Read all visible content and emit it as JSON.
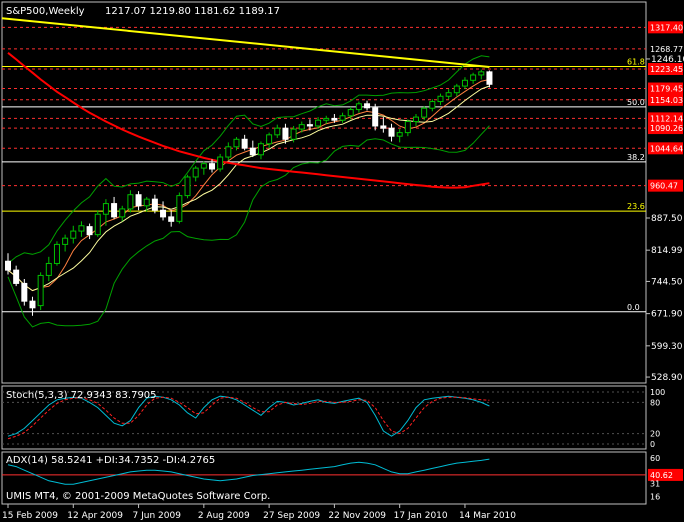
{
  "header": {
    "title": "S&P500,Weekly",
    "ohlc": "1217.07 1219.80 1181.62 1189.17"
  },
  "colors": {
    "background": "#000000",
    "axis": "#c0c0c0",
    "grid": "#2a2a2a",
    "bull": "#00c000",
    "bear": "#ffffff",
    "ma_fast": "#ffff00",
    "ma_slow": "#ff0000",
    "bb": "#00a000",
    "ma_short": "#ff8040",
    "ma_mid": "#ffffa0",
    "stoch_main": "#00bcd4",
    "stoch_signal": "#ff2020",
    "adx": "#00bcd4",
    "hline_red": "#ff3030",
    "hline_yellow": "#ffff00",
    "hline_white": "#ffffff",
    "price_box": "#ff0000"
  },
  "chart_data": {
    "type": "candlestick",
    "title": "S&P500,Weekly",
    "y_axis_labels": [
      "1246.10",
      "887.50",
      "814.99",
      "744.50",
      "671.90",
      "599.30",
      "528.90"
    ],
    "price_range": [
      520,
      1370
    ],
    "horizontal_levels_red": [
      {
        "value": 1317.4,
        "label": "1317.40",
        "boxed": true
      },
      {
        "value": 1268.77,
        "label": "1268.77",
        "boxed": false
      },
      {
        "value": 1223.45,
        "label": "1223.45",
        "boxed": true
      },
      {
        "value": 1179.45,
        "label": "1179.45",
        "boxed": true
      },
      {
        "value": 1154.03,
        "label": "1154.03",
        "boxed": true
      },
      {
        "value": 1112.14,
        "label": "1112.14",
        "boxed": true
      },
      {
        "value": 1090.26,
        "label": "1090.26",
        "boxed": true
      },
      {
        "value": 1044.64,
        "label": "1044.64",
        "boxed": true
      },
      {
        "value": 960.47,
        "label": "960.47",
        "boxed": true
      }
    ],
    "fib_levels": [
      {
        "value": 1229,
        "label": "61.8",
        "color": "yellow"
      },
      {
        "value": 1138,
        "label": "50.0",
        "color": "white"
      },
      {
        "value": 1014,
        "label": "38.2",
        "color": "white"
      },
      {
        "value": 903,
        "label": "23.6",
        "color": "yellow"
      },
      {
        "value": 676,
        "label": "0.0",
        "color": "white"
      }
    ],
    "x_labels": [
      "15 Feb 2009",
      "12 Apr 2009",
      "7 Jun 2009",
      "2 Aug 2009",
      "27 Sep 2009",
      "22 Nov 2009",
      "17 Jan 2010",
      "14 Mar 2010"
    ],
    "x_label_index": [
      0,
      8,
      16,
      24,
      32,
      40,
      48,
      56
    ],
    "candles": [
      {
        "o": 790,
        "h": 808,
        "l": 760,
        "c": 770
      },
      {
        "o": 770,
        "h": 780,
        "l": 734,
        "c": 740
      },
      {
        "o": 740,
        "h": 750,
        "l": 690,
        "c": 700
      },
      {
        "o": 700,
        "h": 710,
        "l": 667,
        "c": 685
      },
      {
        "o": 690,
        "h": 765,
        "l": 680,
        "c": 758
      },
      {
        "o": 758,
        "h": 800,
        "l": 745,
        "c": 785
      },
      {
        "o": 785,
        "h": 835,
        "l": 780,
        "c": 828
      },
      {
        "o": 828,
        "h": 850,
        "l": 812,
        "c": 842
      },
      {
        "o": 842,
        "h": 870,
        "l": 830,
        "c": 858
      },
      {
        "o": 858,
        "h": 880,
        "l": 845,
        "c": 870
      },
      {
        "o": 868,
        "h": 875,
        "l": 840,
        "c": 850
      },
      {
        "o": 850,
        "h": 905,
        "l": 845,
        "c": 896
      },
      {
        "o": 896,
        "h": 930,
        "l": 870,
        "c": 920
      },
      {
        "o": 920,
        "h": 935,
        "l": 885,
        "c": 890
      },
      {
        "o": 890,
        "h": 915,
        "l": 880,
        "c": 908
      },
      {
        "o": 908,
        "h": 950,
        "l": 900,
        "c": 940
      },
      {
        "o": 940,
        "h": 948,
        "l": 905,
        "c": 915
      },
      {
        "o": 915,
        "h": 935,
        "l": 902,
        "c": 930
      },
      {
        "o": 930,
        "h": 940,
        "l": 898,
        "c": 905
      },
      {
        "o": 905,
        "h": 925,
        "l": 882,
        "c": 890
      },
      {
        "o": 890,
        "h": 905,
        "l": 868,
        "c": 880
      },
      {
        "o": 880,
        "h": 945,
        "l": 875,
        "c": 938
      },
      {
        "o": 938,
        "h": 985,
        "l": 932,
        "c": 980
      },
      {
        "o": 980,
        "h": 1005,
        "l": 970,
        "c": 1000
      },
      {
        "o": 1000,
        "h": 1015,
        "l": 985,
        "c": 1010
      },
      {
        "o": 1010,
        "h": 1020,
        "l": 990,
        "c": 998
      },
      {
        "o": 998,
        "h": 1032,
        "l": 992,
        "c": 1025
      },
      {
        "o": 1025,
        "h": 1058,
        "l": 1018,
        "c": 1048
      },
      {
        "o": 1048,
        "h": 1070,
        "l": 1040,
        "c": 1065
      },
      {
        "o": 1065,
        "h": 1075,
        "l": 1040,
        "c": 1045
      },
      {
        "o": 1045,
        "h": 1062,
        "l": 1025,
        "c": 1030
      },
      {
        "o": 1030,
        "h": 1060,
        "l": 1020,
        "c": 1055
      },
      {
        "o": 1055,
        "h": 1080,
        "l": 1045,
        "c": 1075
      },
      {
        "o": 1075,
        "h": 1098,
        "l": 1068,
        "c": 1090
      },
      {
        "o": 1090,
        "h": 1100,
        "l": 1055,
        "c": 1065
      },
      {
        "o": 1065,
        "h": 1095,
        "l": 1058,
        "c": 1088
      },
      {
        "o": 1088,
        "h": 1105,
        "l": 1080,
        "c": 1098
      },
      {
        "o": 1098,
        "h": 1110,
        "l": 1085,
        "c": 1095
      },
      {
        "o": 1095,
        "h": 1115,
        "l": 1088,
        "c": 1108
      },
      {
        "o": 1108,
        "h": 1118,
        "l": 1100,
        "c": 1112
      },
      {
        "o": 1112,
        "h": 1122,
        "l": 1102,
        "c": 1108
      },
      {
        "o": 1108,
        "h": 1125,
        "l": 1102,
        "c": 1118
      },
      {
        "o": 1118,
        "h": 1138,
        "l": 1110,
        "c": 1132
      },
      {
        "o": 1132,
        "h": 1150,
        "l": 1125,
        "c": 1145
      },
      {
        "o": 1145,
        "h": 1152,
        "l": 1130,
        "c": 1136
      },
      {
        "o": 1136,
        "h": 1145,
        "l": 1085,
        "c": 1095
      },
      {
        "o": 1095,
        "h": 1115,
        "l": 1080,
        "c": 1090
      },
      {
        "o": 1090,
        "h": 1100,
        "l": 1060,
        "c": 1072
      },
      {
        "o": 1072,
        "h": 1088,
        "l": 1058,
        "c": 1080
      },
      {
        "o": 1080,
        "h": 1110,
        "l": 1072,
        "c": 1105
      },
      {
        "o": 1105,
        "h": 1122,
        "l": 1095,
        "c": 1115
      },
      {
        "o": 1115,
        "h": 1140,
        "l": 1108,
        "c": 1135
      },
      {
        "o": 1135,
        "h": 1155,
        "l": 1128,
        "c": 1150
      },
      {
        "o": 1150,
        "h": 1168,
        "l": 1142,
        "c": 1162
      },
      {
        "o": 1162,
        "h": 1178,
        "l": 1155,
        "c": 1170
      },
      {
        "o": 1170,
        "h": 1190,
        "l": 1162,
        "c": 1185
      },
      {
        "o": 1185,
        "h": 1205,
        "l": 1178,
        "c": 1198
      },
      {
        "o": 1198,
        "h": 1215,
        "l": 1190,
        "c": 1210
      },
      {
        "o": 1210,
        "h": 1222,
        "l": 1200,
        "c": 1217
      },
      {
        "o": 1217,
        "h": 1220,
        "l": 1182,
        "c": 1189
      }
    ],
    "ma_yellow": {
      "start": 1338,
      "end": 1228
    },
    "ma_red": [
      1260,
      1245,
      1230,
      1215,
      1200,
      1186,
      1172,
      1160,
      1148,
      1136,
      1125,
      1115,
      1105,
      1096,
      1087,
      1079,
      1071,
      1064,
      1057,
      1050,
      1044,
      1038,
      1033,
      1028,
      1023,
      1019,
      1015,
      1012,
      1009,
      1006,
      1003,
      1000,
      998,
      996,
      994,
      992,
      990,
      988,
      986,
      984,
      982,
      980,
      978,
      976,
      974,
      972,
      970,
      968,
      966,
      964,
      962,
      960,
      958,
      957,
      956,
      956,
      957,
      960,
      963,
      966
    ],
    "stochastic": {
      "label": "Stoch(5,3,3) 72.9343 83.7905",
      "levels": [
        "100",
        "80",
        "20",
        "0"
      ],
      "main": [
        15,
        20,
        30,
        45,
        60,
        75,
        85,
        88,
        90,
        88,
        80,
        70,
        55,
        40,
        35,
        45,
        70,
        88,
        92,
        90,
        85,
        75,
        60,
        50,
        70,
        85,
        92,
        90,
        85,
        75,
        65,
        55,
        70,
        82,
        80,
        75,
        78,
        82,
        85,
        80,
        78,
        82,
        85,
        88,
        80,
        55,
        25,
        15,
        25,
        45,
        70,
        85,
        88,
        90,
        92,
        90,
        88,
        85,
        80,
        73
      ],
      "signal": [
        10,
        15,
        22,
        35,
        50,
        65,
        78,
        85,
        88,
        89,
        85,
        78,
        65,
        50,
        40,
        40,
        55,
        75,
        88,
        90,
        88,
        80,
        70,
        58,
        60,
        75,
        88,
        90,
        88,
        80,
        70,
        62,
        62,
        75,
        80,
        78,
        76,
        78,
        82,
        82,
        80,
        80,
        82,
        85,
        84,
        70,
        45,
        25,
        20,
        30,
        50,
        70,
        82,
        88,
        90,
        90,
        89,
        87,
        85,
        84
      ]
    },
    "adx": {
      "label": "ADX(14) 58.5241 +DI:34.7352 -DI:4.2765",
      "levels": [
        "60",
        "40.62",
        "31",
        "16"
      ],
      "threshold": 40.62,
      "main": [
        52,
        50,
        46,
        42,
        38,
        34,
        32,
        30,
        30,
        32,
        34,
        36,
        38,
        40,
        42,
        44,
        45,
        46,
        46,
        45,
        44,
        42,
        40,
        38,
        36,
        35,
        34,
        35,
        36,
        38,
        40,
        41,
        42,
        43,
        44,
        45,
        46,
        47,
        48,
        49,
        50,
        52,
        54,
        55,
        54,
        52,
        48,
        44,
        42,
        42,
        44,
        46,
        48,
        50,
        52,
        54,
        55,
        56,
        57,
        58.5
      ]
    },
    "footer": "UMIS MT4, © 2001-2009 MetaQuotes Software Corp."
  }
}
